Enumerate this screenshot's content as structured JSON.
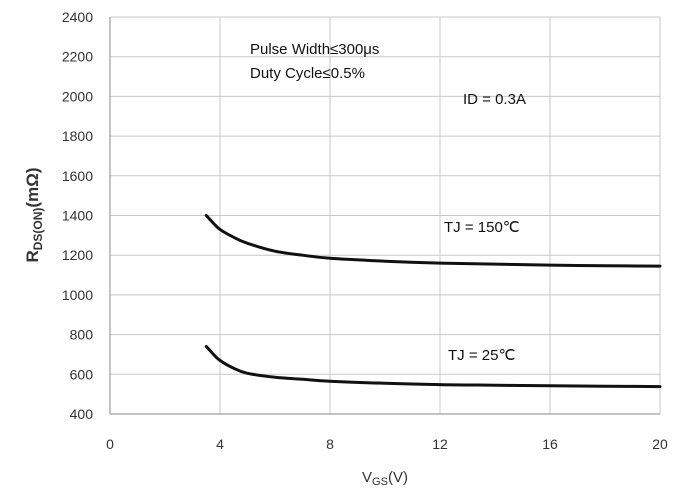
{
  "chart_data": {
    "type": "line",
    "xlabel": {
      "main": "V",
      "sub": "GS",
      "unit": "(V)"
    },
    "ylabel": {
      "main": "R",
      "sub": "DS(ON)",
      "unit": "(mΩ)"
    },
    "xlim": [
      0,
      20
    ],
    "ylim": [
      400,
      2400
    ],
    "xticks": [
      0,
      4,
      8,
      12,
      16,
      20
    ],
    "yticks": [
      400,
      600,
      800,
      1000,
      1200,
      1400,
      1600,
      1800,
      2000,
      2200,
      2400
    ],
    "grid": true,
    "annotations": {
      "pulse": "Pulse Width≤300μs",
      "duty": "Duty Cycle≤0.5%",
      "id": "ID = 0.3A"
    },
    "series": [
      {
        "name": "TJ = 150℃",
        "x": [
          3.5,
          3.7,
          4.0,
          4.5,
          5.0,
          6.0,
          7.0,
          8.0,
          10.0,
          12.0,
          14.0,
          16.0,
          18.0,
          20.0
        ],
        "y": [
          1400,
          1370,
          1330,
          1290,
          1260,
          1220,
          1200,
          1185,
          1170,
          1160,
          1155,
          1150,
          1147,
          1145
        ]
      },
      {
        "name": "TJ = 25℃",
        "x": [
          3.5,
          3.7,
          4.0,
          4.5,
          5.0,
          6.0,
          7.0,
          8.0,
          10.0,
          12.0,
          14.0,
          16.0,
          18.0,
          20.0
        ],
        "y": [
          740,
          710,
          670,
          630,
          605,
          585,
          575,
          565,
          555,
          548,
          545,
          542,
          540,
          538
        ]
      }
    ]
  }
}
